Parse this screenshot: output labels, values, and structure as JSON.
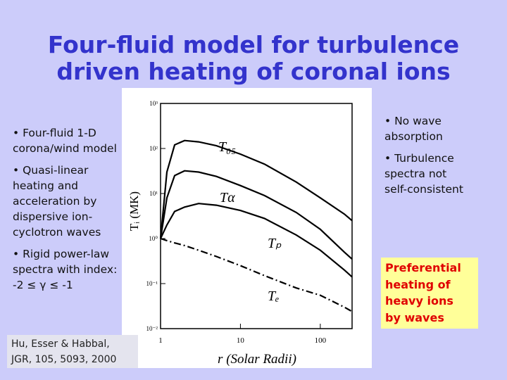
{
  "header": {
    "title": [
      "Four-fluid model for turbulence",
      "driven heating of coronal ions"
    ]
  },
  "left_bullets": [
    [
      "• Four-fluid 1-D",
      "corona/wind model"
    ],
    [
      "• Quasi-linear",
      "heating and",
      "acceleration by",
      "dispersive ion-",
      "cyclotron waves"
    ],
    [
      "• Rigid power-law",
      "spectra with index:",
      "-2 ≤ γ ≤ -1"
    ]
  ],
  "right_bullets": [
    [
      "• No wave",
      "absorption"
    ],
    [
      "• Turbulence",
      "spectra not",
      "self-consistent"
    ]
  ],
  "highlight": [
    "Preferential",
    "heating of",
    "heavy ions",
    "by waves"
  ],
  "citation": [
    "Hu, Esser & Habbal,",
    "JGR, 105, 5093, 2000"
  ],
  "chart_data": {
    "type": "line",
    "x_label": "r (Solar Radii)",
    "y_label": "Tᵢ (MK)",
    "x_log": true,
    "y_log": true,
    "xlim": [
      1,
      250
    ],
    "ylim": [
      0.01,
      1000
    ],
    "xticks": [
      1,
      10,
      100
    ],
    "yticks": [
      {
        "value": 0.01,
        "label": "10⁻²"
      },
      {
        "value": 0.1,
        "label": "10⁻¹"
      },
      {
        "value": 1,
        "label": "10⁰"
      },
      {
        "value": 10,
        "label": "10¹"
      },
      {
        "value": 100,
        "label": "10²"
      },
      {
        "value": 1000,
        "label": "10³"
      }
    ],
    "x": [
      1,
      1.2,
      1.5,
      2,
      3,
      5,
      10,
      20,
      50,
      100,
      200,
      250
    ],
    "series": [
      {
        "name": "T₀₅",
        "color": "#000000",
        "dash": false,
        "values": [
          1,
          30,
          120,
          150,
          140,
          115,
          75,
          45,
          18,
          8,
          3.5,
          2.5
        ]
      },
      {
        "name": "Tα",
        "color": "#000000",
        "dash": false,
        "values": [
          1,
          8,
          25,
          32,
          30,
          24,
          15,
          9,
          3.8,
          1.6,
          0.5,
          0.35
        ]
      },
      {
        "name": "Tₚ",
        "color": "#000000",
        "dash": false,
        "values": [
          1,
          2,
          4,
          5,
          6,
          5.5,
          4.2,
          2.8,
          1.2,
          0.55,
          0.2,
          0.14
        ]
      },
      {
        "name": "Tₑ",
        "color": "#000000",
        "dash": true,
        "values": [
          1,
          0.9,
          0.8,
          0.7,
          0.55,
          0.4,
          0.25,
          0.15,
          0.08,
          0.055,
          0.03,
          0.024
        ]
      }
    ]
  }
}
